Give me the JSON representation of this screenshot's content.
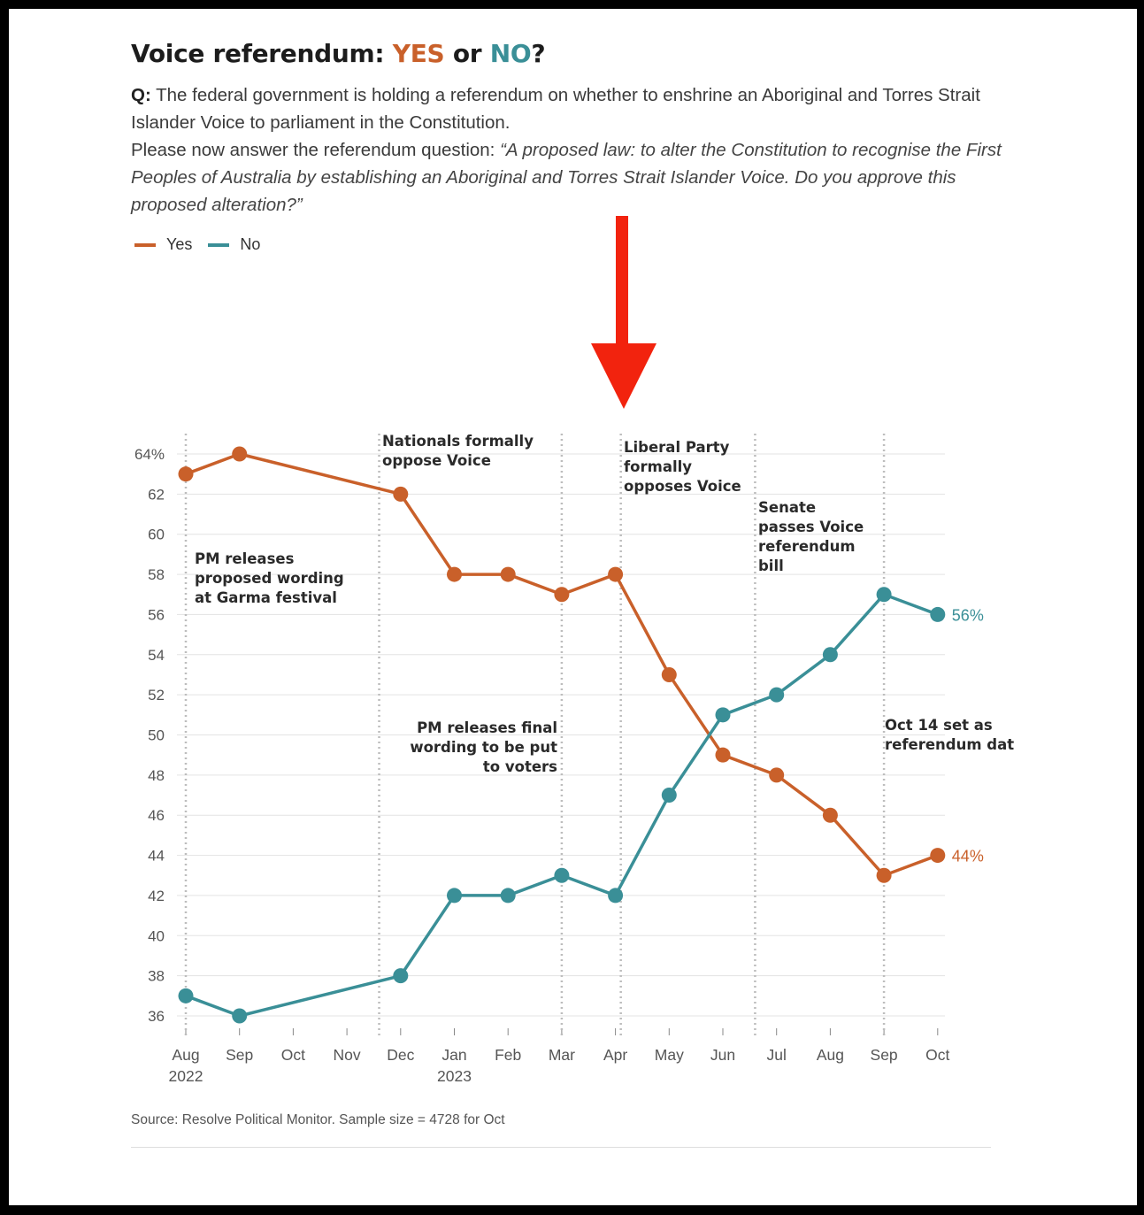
{
  "title": {
    "prefix": "Voice referendum: ",
    "yes": "YES",
    "middle": " or ",
    "no": "NO",
    "suffix": "?"
  },
  "question": {
    "label": "Q:",
    "text": " The federal government is holding a referendum on whether to enshrine an Aboriginal and Torres Strait Islander Voice to parliament in the Constitution.",
    "prompt": "Please now answer the referendum question: ",
    "quote": "“A proposed law: to alter the Constitution to recognise the First Peoples of Australia by establishing an Aboriginal and Torres Strait Islander Voice. Do you approve this proposed alteration?”"
  },
  "legend": [
    {
      "label": "Yes",
      "color": "#c9602a"
    },
    {
      "label": "No",
      "color": "#3a8f97"
    }
  ],
  "source": "Source: Resolve Political Monitor. Sample size = 4728 for Oct",
  "chart_data": {
    "type": "line",
    "y_ticks": [
      "64%",
      "62",
      "60",
      "58",
      "56",
      "54",
      "52",
      "50",
      "48",
      "46",
      "44",
      "42",
      "40",
      "38",
      "36"
    ],
    "y_tick_values": [
      64,
      62,
      60,
      58,
      56,
      54,
      52,
      50,
      48,
      46,
      44,
      42,
      40,
      38,
      36
    ],
    "ylim": [
      36,
      64
    ],
    "x_ticks": [
      {
        "month": 0,
        "label": "Aug",
        "sub": "2022"
      },
      {
        "month": 1,
        "label": "Sep"
      },
      {
        "month": 2,
        "label": "Oct"
      },
      {
        "month": 3,
        "label": "Nov"
      },
      {
        "month": 4,
        "label": "Dec"
      },
      {
        "month": 5,
        "label": "Jan",
        "sub": "2023"
      },
      {
        "month": 6,
        "label": "Feb"
      },
      {
        "month": 7,
        "label": "Mar"
      },
      {
        "month": 8,
        "label": "Apr"
      },
      {
        "month": 9,
        "label": "May"
      },
      {
        "month": 10,
        "label": "Jun"
      },
      {
        "month": 11,
        "label": "Jul"
      },
      {
        "month": 12,
        "label": "Aug"
      },
      {
        "month": 13,
        "label": "Sep"
      },
      {
        "month": 14,
        "label": "Oct"
      }
    ],
    "grid": true,
    "series": [
      {
        "name": "Yes",
        "color": "#c9602a",
        "points": [
          [
            0,
            63
          ],
          [
            1,
            64
          ],
          [
            4,
            62
          ],
          [
            5,
            58
          ],
          [
            6,
            58
          ],
          [
            7,
            57
          ],
          [
            8,
            58
          ],
          [
            9,
            53
          ],
          [
            10,
            49
          ],
          [
            11,
            48
          ],
          [
            12,
            46
          ],
          [
            13,
            43
          ],
          [
            14,
            44
          ]
        ],
        "end_label": "44%"
      },
      {
        "name": "No",
        "color": "#3a8f97",
        "points": [
          [
            0,
            37
          ],
          [
            1,
            36
          ],
          [
            4,
            38
          ],
          [
            5,
            42
          ],
          [
            6,
            42
          ],
          [
            7,
            43
          ],
          [
            8,
            42
          ],
          [
            9,
            47
          ],
          [
            10,
            51
          ],
          [
            11,
            52
          ],
          [
            12,
            54
          ],
          [
            13,
            57
          ],
          [
            14,
            56
          ]
        ],
        "end_label": "56%"
      }
    ],
    "event_months": [
      0,
      3.6,
      7,
      8.1,
      10.6,
      13
    ],
    "annotations": [
      {
        "lines": [
          "PM releases",
          "proposed wording",
          "at Garma festival"
        ]
      },
      {
        "lines": [
          "Nationals formally",
          "oppose Voice"
        ]
      },
      {
        "lines": [
          "PM releases final",
          "wording to be put",
          "to voters"
        ]
      },
      {
        "lines": [
          "Liberal Party",
          "formally",
          "opposes Voice"
        ]
      },
      {
        "lines": [
          "Senate",
          "passes Voice",
          "referendum",
          "bill"
        ]
      },
      {
        "lines": [
          "Oct 14 set as",
          "referendum dat"
        ]
      }
    ]
  }
}
